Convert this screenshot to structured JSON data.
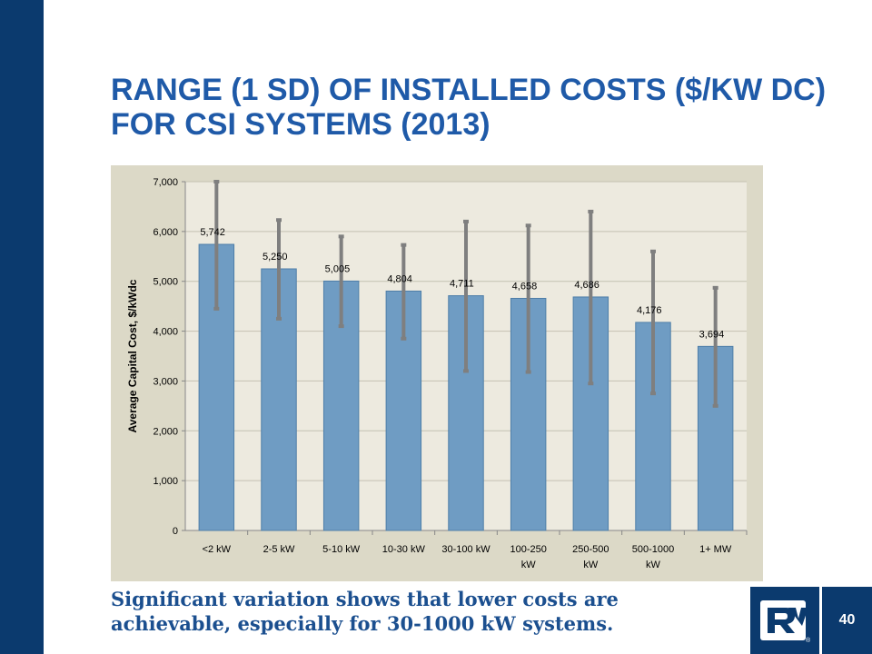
{
  "slide": {
    "title": "RANGE (1 SD) OF INSTALLED COSTS ($/KW DC) FOR CSI SYSTEMS (2013)",
    "caption": "Significant variation shows that lower costs are achievable, especially for 30-1000 kW systems.",
    "page_number": "40",
    "logo_icon": "rv-logo-icon"
  },
  "colors": {
    "sidebar": "#0b3a6e",
    "title": "#1f5aa8",
    "caption": "#1b4f8f",
    "bar_fill": "#6f9cc3",
    "error_bar": "#7f7f7f",
    "chart_bg": "#dcd9c7",
    "plot_bg": "#edeadf"
  },
  "chart_data": {
    "type": "bar",
    "title": "",
    "xlabel": "",
    "ylabel": "Average Capital Cost, $/kWdc",
    "ylim": [
      0,
      7000
    ],
    "yticks": [
      "0",
      "1,000",
      "2,000",
      "3,000",
      "4,000",
      "5,000",
      "6,000",
      "7,000"
    ],
    "categories": [
      [
        "<2 kW"
      ],
      [
        "2-5 kW"
      ],
      [
        "5-10 kW"
      ],
      [
        "10-30 kW"
      ],
      [
        "30-100 kW"
      ],
      [
        "100-250",
        "kW"
      ],
      [
        "250-500",
        "kW"
      ],
      [
        "500-1000",
        "kW"
      ],
      [
        "1+ MW"
      ]
    ],
    "values": [
      5742,
      5250,
      5005,
      4804,
      4711,
      4658,
      4686,
      4176,
      3694
    ],
    "value_labels": [
      "5,742",
      "5,250",
      "5,005",
      "4,804",
      "4,711",
      "4,658",
      "4,686",
      "4,176",
      "3,694"
    ],
    "error_low": [
      4450,
      4250,
      4100,
      3850,
      3200,
      3180,
      2950,
      2750,
      2500
    ],
    "error_high": [
      7000,
      6230,
      5900,
      5730,
      6200,
      6120,
      6400,
      5600,
      4870
    ],
    "grid": true,
    "legend": "none"
  }
}
